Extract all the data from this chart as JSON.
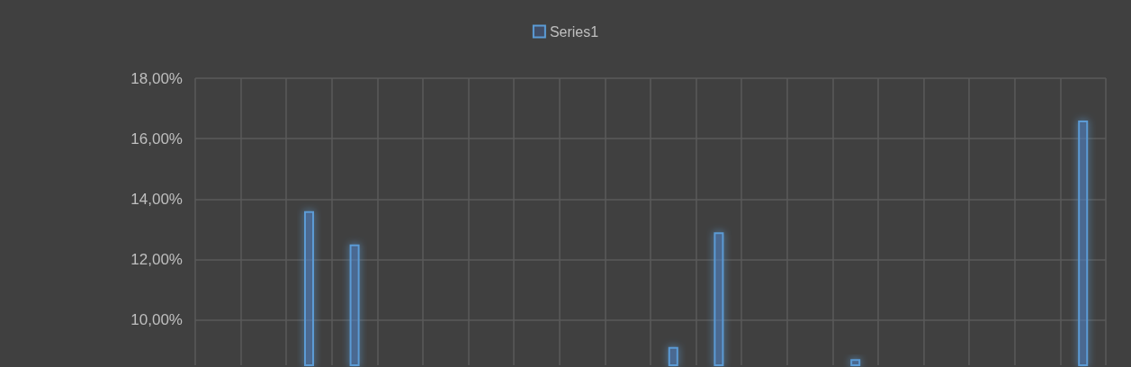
{
  "chart_data": {
    "type": "bar",
    "categories": [
      null,
      null,
      null,
      null,
      null,
      null,
      null,
      null,
      null,
      null,
      null,
      null,
      null,
      null,
      null,
      null,
      null,
      null,
      null,
      null
    ],
    "series": [
      {
        "name": "Series1",
        "color": "#5b9bd5",
        "values": [
          null,
          null,
          13.6,
          12.5,
          null,
          null,
          null,
          null,
          null,
          null,
          9.1,
          12.9,
          null,
          null,
          8.7,
          null,
          null,
          null,
          null,
          16.6
        ]
      }
    ],
    "ylim": [
      8.5,
      18
    ],
    "yticks": [
      {
        "value": 10,
        "label": "10,00%"
      },
      {
        "value": 12,
        "label": "12,00%"
      },
      {
        "value": 14,
        "label": "14,00%"
      },
      {
        "value": 16,
        "label": "16,00%"
      },
      {
        "value": 18,
        "label": "18,00%"
      }
    ],
    "tick_labels": "y",
    "grid": true,
    "legend": "top"
  }
}
